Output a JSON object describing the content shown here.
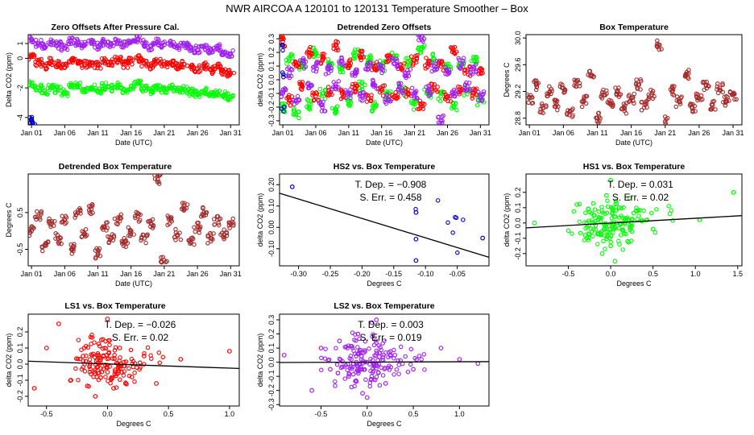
{
  "figure_title": "NWR   AIRCOA A   120101 to 120131   Temperature Smoother – Box",
  "colors": {
    "purple": "#a020f0",
    "red": "#ff0000",
    "green": "#00ff00",
    "blue": "#0000cd",
    "brown": "#a52a2a",
    "black": "#000000"
  },
  "chart_data": [
    {
      "id": "zero-offsets",
      "type": "scatter",
      "title": "Zero Offsets After Pressure Cal.",
      "xlabel": "Date (UTC)",
      "ylabel": "Delta CO2 (ppm)",
      "xlim": [
        -0.5,
        31.3
      ],
      "ylim": [
        -4.5,
        1.6
      ],
      "x_ticks": [
        0,
        5,
        10,
        15,
        20,
        25,
        30
      ],
      "x_tick_labels": [
        "Jan 01",
        "Jan 06",
        "Jan 11",
        "Jan 16",
        "Jan 21",
        "Jan 26",
        "Jan 31"
      ],
      "y_ticks": [
        -4,
        -2,
        0,
        1
      ],
      "y_tick_labels": [
        "-4",
        "-2",
        "0",
        "1"
      ],
      "series": [
        {
          "name": "purple",
          "color": "purple",
          "x": [
            0,
            1,
            2,
            3,
            4,
            5,
            6,
            7,
            8,
            9,
            10,
            11,
            12,
            13,
            14,
            15,
            16,
            17,
            18,
            19,
            20,
            21,
            22,
            23,
            24,
            25,
            26,
            27,
            28,
            29,
            30
          ],
          "y": [
            1.3,
            1.0,
            0.8,
            1.1,
            0.9,
            0.7,
            1.2,
            1.1,
            0.9,
            1.0,
            0.8,
            1.1,
            1.0,
            1.2,
            0.9,
            1.1,
            1.3,
            1.0,
            0.8,
            1.1,
            0.9,
            1.0,
            0.8,
            0.9,
            0.7,
            0.6,
            0.8,
            0.5,
            0.7,
            0.4,
            0.3
          ]
        },
        {
          "name": "red",
          "color": "red",
          "x": [
            0,
            1,
            2,
            3,
            4,
            5,
            6,
            7,
            8,
            9,
            10,
            11,
            12,
            13,
            14,
            15,
            16,
            17,
            18,
            19,
            20,
            21,
            22,
            23,
            24,
            25,
            26,
            27,
            28,
            29,
            30
          ],
          "y": [
            0.1,
            -0.3,
            -0.5,
            -0.2,
            -0.4,
            -0.6,
            -0.1,
            -0.2,
            -0.4,
            -0.3,
            -0.5,
            -0.2,
            -0.3,
            -0.1,
            -0.4,
            -0.2,
            0.0,
            -0.3,
            -0.5,
            -0.2,
            -0.4,
            -0.3,
            -0.5,
            -0.4,
            -0.6,
            -0.7,
            -0.5,
            -0.8,
            -0.6,
            -0.9,
            -1.0
          ]
        },
        {
          "name": "green",
          "color": "green",
          "x": [
            0,
            1,
            2,
            3,
            4,
            5,
            6,
            7,
            8,
            9,
            10,
            11,
            12,
            13,
            14,
            15,
            16,
            17,
            18,
            19,
            20,
            21,
            22,
            23,
            24,
            25,
            26,
            27,
            28,
            29,
            30
          ],
          "y": [
            -1.7,
            -2.0,
            -2.2,
            -1.9,
            -2.1,
            -2.3,
            -1.8,
            -1.9,
            -2.1,
            -2.0,
            -2.2,
            -1.9,
            -2.0,
            -1.8,
            -2.1,
            -1.9,
            -1.7,
            -2.0,
            -2.2,
            -1.9,
            -2.1,
            -2.0,
            -2.2,
            -2.1,
            -2.3,
            -2.4,
            -2.2,
            -2.5,
            -2.3,
            -2.5,
            -2.6
          ]
        },
        {
          "name": "blue",
          "color": "blue",
          "x": [
            0.0,
            0.05,
            0.1,
            0.15,
            0.2
          ],
          "y": [
            -4.1,
            -4.2,
            -4.3,
            -4.35,
            -4.4
          ]
        }
      ]
    },
    {
      "id": "detrended-zero-offsets",
      "type": "scatter",
      "title": "Detrended Zero Offsets",
      "xlabel": "Date (UTC)",
      "ylabel": "delta CO2 (ppm)",
      "xlim": [
        -0.5,
        31.3
      ],
      "ylim": [
        -0.33,
        0.33
      ],
      "x_ticks": [
        0,
        5,
        10,
        15,
        20,
        25,
        30
      ],
      "x_tick_labels": [
        "Jan 01",
        "Jan 06",
        "Jan 11",
        "Jan 16",
        "Jan 21",
        "Jan 26",
        "Jan 31"
      ],
      "y_ticks": [
        -0.3,
        -0.2,
        -0.1,
        0.0,
        0.1,
        0.2,
        0.3
      ],
      "y_tick_labels": [
        "-0.3",
        "-0.2",
        "-0.1",
        "0.0",
        "0.1",
        "0.2",
        "0.3"
      ],
      "series": [
        {
          "name": "green",
          "color": "green",
          "x": [
            0,
            1,
            2,
            3,
            4,
            5,
            6,
            7,
            8,
            9,
            10,
            11,
            12,
            13,
            14,
            15,
            16,
            17,
            18,
            19,
            20,
            21,
            22,
            23,
            24,
            25,
            26,
            27,
            28,
            29,
            30
          ],
          "y": [
            -0.2,
            0.15,
            -0.25,
            0.1,
            -0.18,
            0.2,
            -0.1,
            0.12,
            -0.22,
            0.08,
            -0.15,
            0.18,
            -0.05,
            0.14,
            -0.2,
            0.1,
            -0.12,
            0.16,
            -0.08,
            0.13,
            -0.18,
            0.22,
            -0.1,
            0.15,
            -0.12,
            0.1,
            -0.2,
            0.12,
            -0.08,
            0.14,
            -0.15
          ]
        },
        {
          "name": "red",
          "color": "red",
          "x": [
            0,
            1,
            2,
            3,
            4,
            5,
            6,
            7,
            8,
            9,
            10,
            11,
            12,
            13,
            14,
            15,
            16,
            17,
            18,
            19,
            20,
            21,
            22,
            23,
            24,
            25,
            26,
            27,
            28,
            29,
            30
          ],
          "y": [
            0.28,
            -0.15,
            0.1,
            -0.05,
            0.2,
            -0.12,
            0.15,
            -0.08,
            0.25,
            -0.1,
            0.12,
            -0.06,
            0.18,
            -0.14,
            0.1,
            -0.08,
            0.16,
            -0.12,
            0.08,
            -0.1,
            0.14,
            -0.18,
            0.12,
            -0.06,
            0.1,
            -0.12,
            0.2,
            -0.08,
            0.06,
            -0.1,
            0.08
          ]
        },
        {
          "name": "purple",
          "color": "purple",
          "x": [
            0,
            1,
            2,
            3,
            4,
            5,
            6,
            7,
            8,
            9,
            10,
            11,
            12,
            13,
            14,
            15,
            16,
            17,
            18,
            19,
            20,
            21,
            22,
            23,
            24,
            25,
            26,
            27,
            28,
            29,
            30
          ],
          "y": [
            -0.1,
            0.05,
            -0.15,
            0.12,
            -0.06,
            0.1,
            -0.2,
            0.08,
            -0.05,
            0.14,
            -0.1,
            0.06,
            -0.12,
            0.1,
            -0.04,
            0.08,
            -0.14,
            0.12,
            -0.06,
            0.05,
            -0.1,
            0.3,
            -0.08,
            0.1,
            -0.3,
            0.06,
            -0.1,
            0.12,
            -0.05,
            0.08,
            -0.12
          ]
        },
        {
          "name": "blue",
          "color": "blue",
          "x": [
            0.0,
            0.1,
            0.2
          ],
          "y": [
            0.25,
            0.02,
            -0.2
          ]
        }
      ]
    },
    {
      "id": "box-temperature",
      "type": "scatter",
      "title": "Box Temperature",
      "xlabel": "Date (UTC)",
      "ylabel": "Degrees C",
      "xlim": [
        -0.5,
        31.3
      ],
      "ylim": [
        28.7,
        30.05
      ],
      "x_ticks": [
        0,
        5,
        10,
        15,
        20,
        25,
        30
      ],
      "x_tick_labels": [
        "Jan 01",
        "Jan 06",
        "Jan 11",
        "Jan 16",
        "Jan 21",
        "Jan 26",
        "Jan 31"
      ],
      "y_ticks": [
        28.8,
        29.2,
        29.6,
        30.0
      ],
      "y_tick_labels": [
        "28.8",
        "29.2",
        "29.6",
        "30.0"
      ],
      "series": [
        {
          "name": "brown",
          "color": "brown",
          "x": [
            0,
            1,
            2,
            3,
            4,
            5,
            6,
            7,
            8,
            9,
            10,
            11,
            12,
            13,
            14,
            15,
            16,
            17,
            18,
            19,
            20,
            21,
            22,
            23,
            24,
            25,
            26,
            27,
            28,
            29,
            30
          ],
          "y": [
            29.1,
            29.3,
            28.95,
            29.2,
            29.0,
            29.25,
            28.9,
            29.35,
            29.05,
            29.45,
            28.8,
            29.15,
            29.0,
            29.2,
            28.95,
            29.1,
            29.3,
            29.0,
            29.15,
            29.9,
            28.75,
            29.2,
            29.05,
            29.45,
            28.95,
            29.1,
            29.3,
            29.0,
            29.25,
            29.05,
            29.15
          ]
        }
      ]
    },
    {
      "id": "detrended-box-temperature",
      "type": "scatter",
      "title": "Detrended Box Temperature",
      "xlabel": "Date (UTC)",
      "ylabel": "Degrees C",
      "xlim": [
        -0.5,
        31.3
      ],
      "ylim": [
        -0.95,
        1.55
      ],
      "x_ticks": [
        0,
        5,
        10,
        15,
        20,
        25,
        30
      ],
      "x_tick_labels": [
        "Jan 01",
        "Jan 06",
        "Jan 11",
        "Jan 16",
        "Jan 21",
        "Jan 26",
        "Jan 31"
      ],
      "y_ticks": [
        -0.5,
        0.5
      ],
      "y_tick_labels": [
        "-0.5",
        "0.5"
      ],
      "series": [
        {
          "name": "brown",
          "color": "brown",
          "x": [
            0,
            1,
            2,
            3,
            4,
            5,
            6,
            7,
            8,
            9,
            10,
            11,
            12,
            13,
            14,
            15,
            16,
            17,
            18,
            19,
            20,
            21,
            22,
            23,
            24,
            25,
            26,
            27,
            28,
            29,
            30
          ],
          "y": [
            0.0,
            0.4,
            -0.4,
            0.2,
            -0.2,
            0.3,
            -0.5,
            0.5,
            -0.1,
            0.6,
            -0.6,
            0.1,
            -0.2,
            0.3,
            -0.3,
            0.0,
            0.4,
            -0.2,
            0.2,
            1.4,
            -0.8,
            0.3,
            -0.1,
            0.7,
            -0.3,
            0.1,
            0.5,
            -0.2,
            0.3,
            -0.1,
            0.2
          ]
        }
      ]
    },
    {
      "id": "hs2-vs-box",
      "type": "scatter",
      "title": "HS2 vs. Box Temperature",
      "xlabel": "Degrees C",
      "ylabel": "delta CO2 (ppm)",
      "annotation_tdep": "T. Dep. =  −0.908",
      "annotation_serr": "S. Err. =  0.458",
      "xlim": [
        -0.33,
        0.0
      ],
      "ylim": [
        -0.18,
        0.25
      ],
      "x_ticks": [
        -0.3,
        -0.25,
        -0.2,
        -0.15,
        -0.1,
        -0.05
      ],
      "x_tick_labels": [
        "-0.30",
        "-0.25",
        "-0.20",
        "-0.15",
        "-0.10",
        "-0.05"
      ],
      "y_ticks": [
        -0.1,
        0.0,
        0.1,
        0.2
      ],
      "y_tick_labels": [
        "-0.10",
        "0.00",
        "0.10",
        "0.20"
      ],
      "fit_line": {
        "x": [
          -0.33,
          0.0
        ],
        "y": [
          0.16,
          -0.14
        ]
      },
      "series": [
        {
          "name": "blue",
          "color": "blue",
          "x": [
            -0.31,
            -0.115,
            -0.115,
            -0.115,
            -0.01
          ],
          "y": [
            0.19,
            0.07,
            -0.055,
            -0.155,
            -0.05
          ]
        }
      ]
    },
    {
      "id": "hs1-vs-box",
      "type": "scatter",
      "title": "HS1 vs. Box Temperature",
      "xlabel": "Degrees C",
      "ylabel": "delta CO2 (ppm)",
      "annotation_tdep": "T. Dep. =  0.031",
      "annotation_serr": "S. Err. =  0.02",
      "xlim": [
        -1.0,
        1.55
      ],
      "ylim": [
        -0.28,
        0.32
      ],
      "x_ticks": [
        -0.5,
        0.0,
        0.5,
        1.0,
        1.5
      ],
      "x_tick_labels": [
        "-0.5",
        "0.0",
        "0.5",
        "1.0",
        "1.5"
      ],
      "y_ticks": [
        -0.2,
        -0.1,
        0.0,
        0.1,
        0.2
      ],
      "y_tick_labels": [
        "-0.2",
        "-0.1",
        "0.0",
        "0.1",
        "0.2"
      ],
      "fit_line": {
        "x": [
          -1.0,
          1.55
        ],
        "y": [
          -0.032,
          0.048
        ]
      },
      "series": [
        {
          "name": "green",
          "color": "green",
          "x": [
            -0.9,
            -0.5,
            -0.4,
            -0.3,
            -0.2,
            -0.1,
            0.0,
            0.05,
            0.1,
            0.2,
            0.3,
            0.5,
            0.7,
            1.05,
            1.45,
            -0.05,
            0.0,
            -0.15
          ],
          "y": [
            0.0,
            -0.05,
            0.12,
            -0.08,
            0.05,
            -0.2,
            0.28,
            -0.25,
            0.1,
            -0.12,
            0.08,
            -0.04,
            0.06,
            0.02,
            0.2,
            0.18,
            -0.15,
            0.02
          ]
        }
      ]
    },
    {
      "id": "ls1-vs-box",
      "type": "scatter",
      "title": "LS1 vs. Box Temperature",
      "xlabel": "Degrees C",
      "ylabel": "delta CO2 (ppm)",
      "annotation_tdep": "T. Dep. =  −0.026",
      "annotation_serr": "S. Err. =  0.02",
      "xlim": [
        -0.65,
        1.08
      ],
      "ylim": [
        -0.26,
        0.31
      ],
      "x_ticks": [
        -0.5,
        0.0,
        0.5,
        1.0
      ],
      "x_tick_labels": [
        "-0.5",
        "0.0",
        "0.5",
        "1.0"
      ],
      "y_ticks": [
        -0.2,
        -0.1,
        0.0,
        0.1,
        0.2
      ],
      "y_tick_labels": [
        "-0.2",
        "-0.1",
        "0.0",
        "0.1",
        "0.2"
      ],
      "fit_line": {
        "x": [
          -0.65,
          1.08
        ],
        "y": [
          0.018,
          -0.027
        ]
      },
      "series": [
        {
          "name": "red",
          "color": "red",
          "x": [
            -0.6,
            -0.5,
            -0.4,
            -0.3,
            -0.2,
            -0.1,
            0.0,
            0.05,
            0.1,
            0.2,
            0.3,
            0.4,
            0.6,
            1.0,
            -0.05,
            0.0,
            -0.2
          ],
          "y": [
            -0.15,
            0.1,
            0.25,
            -0.1,
            0.05,
            -0.2,
            0.28,
            -0.15,
            0.1,
            -0.08,
            0.05,
            -0.12,
            0.03,
            0.08,
            0.15,
            -0.05,
            -0.02
          ]
        }
      ]
    },
    {
      "id": "ls2-vs-box",
      "type": "scatter",
      "title": "LS2 vs. Box Temperature",
      "xlabel": "Degrees C",
      "ylabel": "delta CO2 (ppm)",
      "annotation_tdep": "T. Dep. =  0.003",
      "annotation_serr": "S. Err. =  0.019",
      "xlim": [
        -0.95,
        1.32
      ],
      "ylim": [
        -0.31,
        0.34
      ],
      "x_ticks": [
        -0.5,
        0.0,
        0.5,
        1.0
      ],
      "x_tick_labels": [
        "-0.5",
        "0.0",
        "0.5",
        "1.0"
      ],
      "y_ticks": [
        -0.3,
        -0.2,
        -0.1,
        0.0,
        0.1,
        0.2,
        0.3
      ],
      "y_tick_labels": [
        "-0.3",
        "-0.2",
        "-0.1",
        "0.0",
        "0.1",
        "0.2",
        "0.3"
      ],
      "fit_line": {
        "x": [
          -0.95,
          1.32
        ],
        "y": [
          -0.002,
          0.004
        ]
      },
      "series": [
        {
          "name": "purple",
          "color": "purple",
          "x": [
            -0.9,
            -0.6,
            -0.5,
            -0.4,
            -0.3,
            -0.2,
            -0.1,
            0.0,
            0.05,
            0.1,
            0.2,
            0.3,
            0.5,
            0.8,
            1.0,
            1.2,
            0.1,
            -0.05,
            0.0
          ],
          "y": [
            0.05,
            -0.2,
            0.1,
            -0.05,
            0.15,
            -0.1,
            0.2,
            -0.25,
            0.28,
            0.08,
            -0.15,
            0.05,
            -0.05,
            0.1,
            0.02,
            -0.01,
            0.3,
            -0.22,
            0.0
          ]
        }
      ]
    }
  ]
}
